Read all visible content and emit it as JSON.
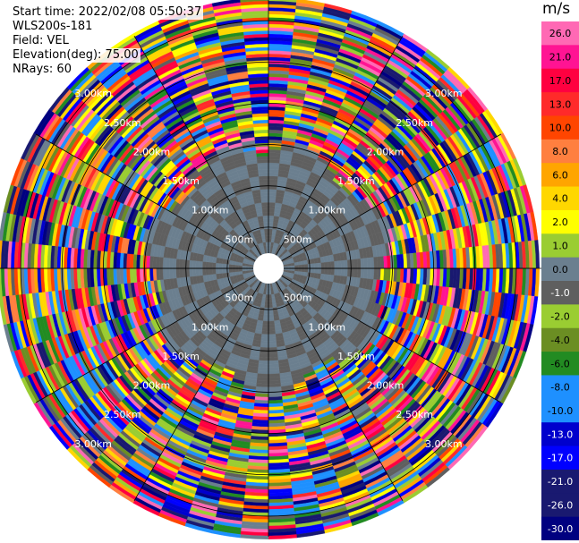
{
  "header": {
    "start_time": "Start time: 2022/02/08 05:50:37",
    "instrument": "WLS200s-181",
    "field": "Field: VEL",
    "elevation": "Elevation(deg): 75.00",
    "nrays": "NRays: 60"
  },
  "colorbar": {
    "unit": "m/s",
    "ticks": [
      "26.0",
      "21.0",
      "17.0",
      "13.0",
      "10.0",
      "8.0",
      "6.0",
      "4.0",
      "2.0",
      "1.0",
      "0.0",
      "-1.0",
      "-2.0",
      "-4.0",
      "-6.0",
      "-8.0",
      "-10.0",
      "-13.0",
      "-17.0",
      "-21.0",
      "-26.0",
      "-30.0"
    ],
    "colors": [
      "#ff69b4",
      "#ff1493",
      "#ff0040",
      "#ff2a2a",
      "#ff4500",
      "#ff7f3f",
      "#ffa500",
      "#ffd700",
      "#ffff00",
      "#9acd32",
      "#6b7f8f",
      "#5f5f5f",
      "#9acd32",
      "#6b8e23",
      "#228b22",
      "#1e90ff",
      "#1e90ff",
      "#0000cd",
      "#0000ff",
      "#191970",
      "#191970",
      "#000080"
    ]
  },
  "chart_data": {
    "type": "heatmap",
    "subtype": "polar PPI sector plot",
    "field": "VEL",
    "units": "m/s",
    "nrays": 60,
    "elevation_deg": 75.0,
    "range_rings": [
      "500m",
      "1.00km",
      "1.50km",
      "2.00km",
      "2.50km",
      "3.00km"
    ],
    "range_rings_m": [
      500,
      1000,
      1500,
      2000,
      2500,
      3000
    ],
    "value_range": [
      -30.0,
      26.0
    ],
    "near_range_field": "0.0 to -1.0 (grey, low-velocity core out to about 1.5 km)",
    "far_range_field": "mixed noisy velocities across the full scale"
  }
}
